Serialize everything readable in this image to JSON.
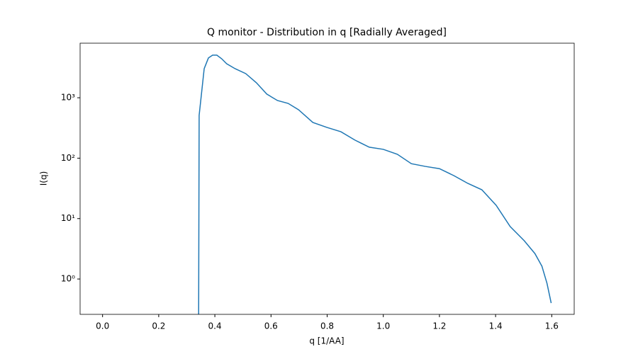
{
  "chart_data": {
    "type": "line",
    "title": "Q monitor - Distribution in q [Radially Averaged]",
    "xlabel": "q [1/AA]",
    "ylabel": "I(q)",
    "log_y": true,
    "xlim": [
      -0.08,
      1.68
    ],
    "ylim": [
      0.26,
      8000
    ],
    "xticks": [
      {
        "value": 0,
        "label": "0.0"
      },
      0.2,
      0.4,
      0.6,
      0.8,
      {
        "value": 1,
        "label": "1.0"
      },
      1.2,
      1.4,
      1.6
    ],
    "yticks": [
      {
        "value": 1,
        "label": "10⁰"
      },
      {
        "value": 10,
        "label": "10¹"
      },
      {
        "value": 100,
        "label": "10²"
      },
      {
        "value": 1000,
        "label": "10³"
      }
    ],
    "x": [
      0.342,
      0.344,
      0.362,
      0.377,
      0.392,
      0.407,
      0.424,
      0.442,
      0.472,
      0.51,
      0.548,
      0.585,
      0.623,
      0.661,
      0.698,
      0.749,
      0.799,
      0.849,
      0.899,
      0.95,
      1.0,
      1.05,
      1.1,
      1.15,
      1.2,
      1.251,
      1.301,
      1.351,
      1.402,
      1.452,
      1.502,
      1.54,
      1.565,
      1.583,
      1.598
    ],
    "series": [
      {
        "color": "#1f77b4",
        "values": [
          0,
          510,
          3030,
          4550,
          5070,
          5070,
          4430,
          3660,
          3030,
          2510,
          1770,
          1150,
          900,
          807,
          634,
          390,
          323,
          274,
          199,
          152,
          140,
          116,
          81,
          73,
          67,
          51.5,
          38.3,
          30,
          16.6,
          7.38,
          4.3,
          2.64,
          1.63,
          0.85,
          0.4
        ]
      }
    ]
  }
}
